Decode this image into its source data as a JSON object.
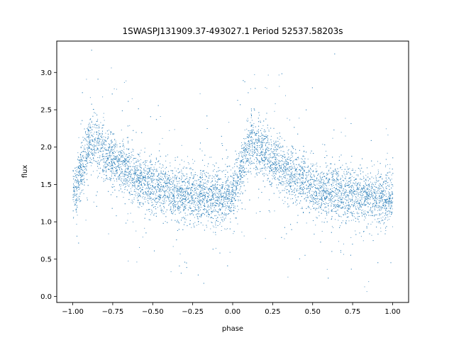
{
  "chart_data": {
    "type": "scatter",
    "title": "1SWASPJ131909.37-493027.1 Period 52537.58203s",
    "xlabel": "phase",
    "ylabel": "flux",
    "xlim": [
      -1.1,
      1.1
    ],
    "ylim": [
      -0.08,
      3.42
    ],
    "xticks": [
      -1.0,
      -0.75,
      -0.5,
      -0.25,
      0.0,
      0.25,
      0.5,
      0.75,
      1.0
    ],
    "xtick_labels": [
      "−1.00",
      "−0.75",
      "−0.50",
      "−0.25",
      "0.00",
      "0.25",
      "0.50",
      "0.75",
      "1.00"
    ],
    "yticks": [
      0.0,
      0.5,
      1.0,
      1.5,
      2.0,
      2.5,
      3.0
    ],
    "ytick_labels": [
      "0.0",
      "0.5",
      "1.0",
      "1.5",
      "2.0",
      "2.5",
      "3.0"
    ],
    "grid": false,
    "marker_color": "#1f77b4",
    "profile": {
      "description_note": "folded light curve, repeated over two cycles (phase -1..0 and 0..1)",
      "phase": [
        0.0,
        0.03,
        0.06,
        0.09,
        0.12,
        0.15,
        0.2,
        0.3,
        0.4,
        0.5,
        0.6,
        0.7,
        0.8,
        0.9,
        0.96,
        1.0
      ],
      "flux": [
        1.35,
        1.55,
        1.78,
        1.98,
        2.1,
        2.02,
        1.92,
        1.75,
        1.6,
        1.48,
        1.42,
        1.38,
        1.36,
        1.34,
        1.32,
        1.35
      ],
      "scatter_sigma": 0.18
    }
  }
}
